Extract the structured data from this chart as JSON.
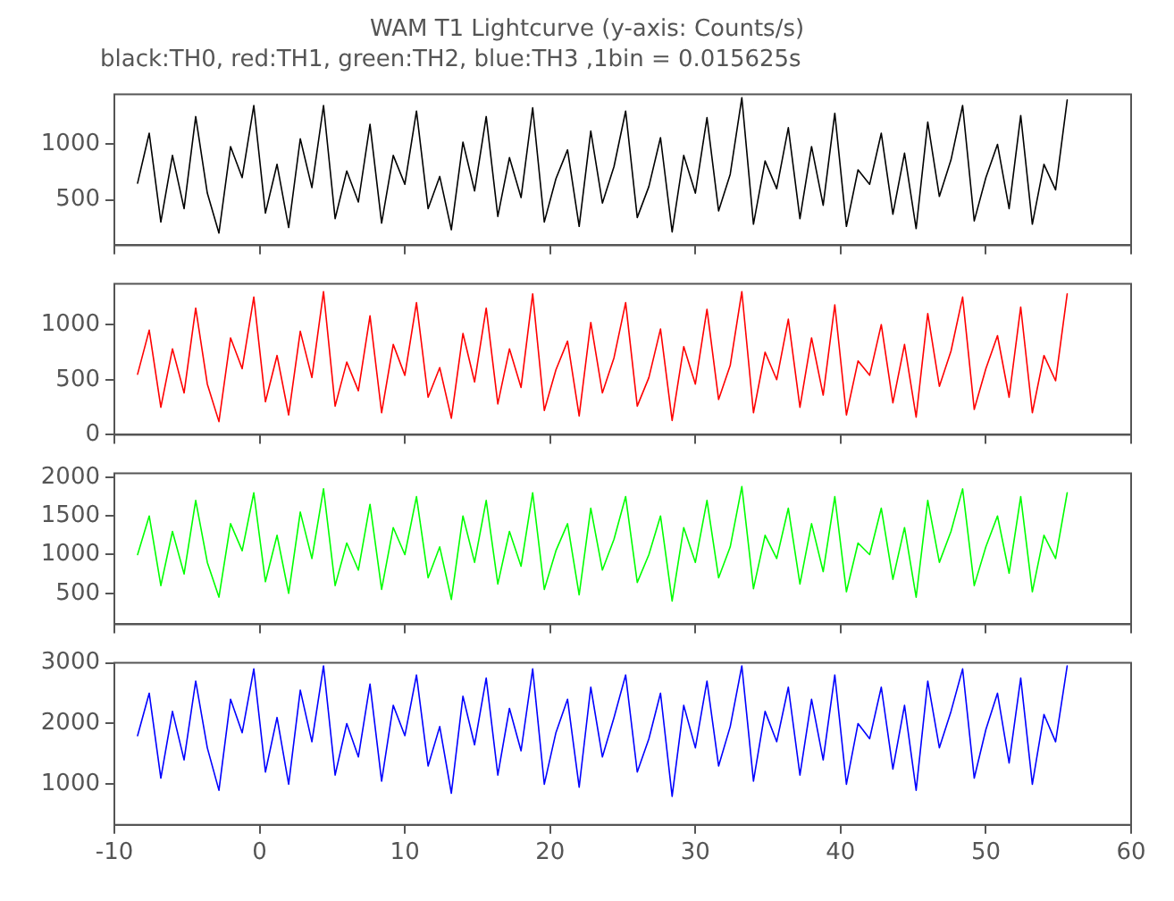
{
  "chart_data": [
    {
      "type": "line",
      "title": "WAM T1 Lightcurve (y-axis: Counts/s)",
      "subtitle": "black:TH0, red:TH1, green:TH2, blue:TH3 ,1bin = 0.015625s",
      "tick_labels": "y",
      "xlim": [
        -10,
        60
      ],
      "xticks": [
        -10,
        0,
        10,
        20,
        30,
        40,
        50,
        60
      ],
      "ylim": [
        90,
        1450
      ],
      "yticks": [
        500,
        1000
      ],
      "x": [
        -8.4,
        -7.6,
        -6.8,
        -6,
        -5.2,
        -4.4,
        -3.6,
        -2.8,
        -2,
        -1.2,
        -0.4,
        0.4,
        1.2,
        2,
        2.8,
        3.6,
        4.4,
        5.2,
        6,
        6.8,
        7.6,
        8.4,
        9.2,
        10,
        10.8,
        11.6,
        12.4,
        13.2,
        14,
        14.8,
        15.6,
        16.4,
        17.2,
        18,
        18.8,
        19.6,
        20.4,
        21.2,
        22,
        22.8,
        23.6,
        24.4,
        25.2,
        26,
        26.8,
        27.6,
        28.4,
        29.2,
        30,
        30.8,
        31.6,
        32.4,
        33.2,
        34,
        34.8,
        35.6,
        36.4,
        37.2,
        38,
        38.8,
        39.6,
        40.4,
        41.2,
        42,
        42.8,
        43.6,
        44.4,
        45.2,
        46,
        46.8,
        47.6,
        48.4,
        49.2,
        50,
        50.8,
        51.6,
        52.4,
        53.2,
        54,
        54.8,
        55.6
      ],
      "series": [
        {
          "color": "#000000",
          "values": [
            650,
            1100,
            300,
            900,
            420,
            1250,
            560,
            200,
            980,
            700,
            1350,
            380,
            820,
            250,
            1050,
            610,
            1350,
            330,
            760,
            480,
            1180,
            290,
            900,
            640,
            1300,
            420,
            710,
            230,
            1020,
            580,
            1250,
            350,
            880,
            520,
            1330,
            300,
            690,
            950,
            260,
            1120,
            470,
            800,
            1300,
            340,
            620,
            1060,
            210,
            900,
            560,
            1240,
            400,
            730,
            1420,
            280,
            850,
            600,
            1150,
            330,
            980,
            450,
            1280,
            260,
            770,
            640,
            1100,
            370,
            920,
            240,
            1200,
            530,
            860,
            1350,
            310,
            700,
            1000,
            420,
            1260,
            280,
            820,
            590,
            1400
          ]
        }
      ]
    },
    {
      "type": "line",
      "tick_labels": "y",
      "xlim": [
        -10,
        60
      ],
      "xticks": [
        -10,
        0,
        10,
        20,
        30,
        40,
        50,
        60
      ],
      "ylim": [
        0,
        1370
      ],
      "yticks": [
        0,
        500,
        1000
      ],
      "x": [
        -8.4,
        -7.6,
        -6.8,
        -6,
        -5.2,
        -4.4,
        -3.6,
        -2.8,
        -2,
        -1.2,
        -0.4,
        0.4,
        1.2,
        2,
        2.8,
        3.6,
        4.4,
        5.2,
        6,
        6.8,
        7.6,
        8.4,
        9.2,
        10,
        10.8,
        11.6,
        12.4,
        13.2,
        14,
        14.8,
        15.6,
        16.4,
        17.2,
        18,
        18.8,
        19.6,
        20.4,
        21.2,
        22,
        22.8,
        23.6,
        24.4,
        25.2,
        26,
        26.8,
        27.6,
        28.4,
        29.2,
        30,
        30.8,
        31.6,
        32.4,
        33.2,
        34,
        34.8,
        35.6,
        36.4,
        37.2,
        38,
        38.8,
        39.6,
        40.4,
        41.2,
        42,
        42.8,
        43.6,
        44.4,
        45.2,
        46,
        46.8,
        47.6,
        48.4,
        49.2,
        50,
        50.8,
        51.6,
        52.4,
        53.2,
        54,
        54.8,
        55.6
      ],
      "series": [
        {
          "color": "#ff0000",
          "values": [
            550,
            950,
            250,
            780,
            380,
            1150,
            460,
            120,
            880,
            600,
            1250,
            300,
            720,
            180,
            940,
            520,
            1300,
            260,
            660,
            400,
            1080,
            200,
            820,
            540,
            1200,
            340,
            610,
            150,
            920,
            480,
            1150,
            280,
            780,
            430,
            1280,
            220,
            590,
            850,
            170,
            1020,
            380,
            700,
            1200,
            260,
            520,
            960,
            130,
            800,
            460,
            1140,
            320,
            630,
            1300,
            200,
            750,
            500,
            1050,
            250,
            880,
            360,
            1180,
            180,
            670,
            540,
            1000,
            290,
            820,
            160,
            1100,
            440,
            760,
            1250,
            230,
            600,
            900,
            340,
            1160,
            200,
            720,
            490,
            1280
          ]
        }
      ]
    },
    {
      "type": "line",
      "tick_labels": "y",
      "xlim": [
        -10,
        60
      ],
      "xticks": [
        -10,
        0,
        10,
        20,
        30,
        40,
        50,
        60
      ],
      "ylim": [
        100,
        2050
      ],
      "yticks": [
        500,
        1000,
        1500,
        2000
      ],
      "x": [
        -8.4,
        -7.6,
        -6.8,
        -6,
        -5.2,
        -4.4,
        -3.6,
        -2.8,
        -2,
        -1.2,
        -0.4,
        0.4,
        1.2,
        2,
        2.8,
        3.6,
        4.4,
        5.2,
        6,
        6.8,
        7.6,
        8.4,
        9.2,
        10,
        10.8,
        11.6,
        12.4,
        13.2,
        14,
        14.8,
        15.6,
        16.4,
        17.2,
        18,
        18.8,
        19.6,
        20.4,
        21.2,
        22,
        22.8,
        23.6,
        24.4,
        25.2,
        26,
        26.8,
        27.6,
        28.4,
        29.2,
        30,
        30.8,
        31.6,
        32.4,
        33.2,
        34,
        34.8,
        35.6,
        36.4,
        37.2,
        38,
        38.8,
        39.6,
        40.4,
        41.2,
        42,
        42.8,
        43.6,
        44.4,
        45.2,
        46,
        46.8,
        47.6,
        48.4,
        49.2,
        50,
        50.8,
        51.6,
        52.4,
        53.2,
        54,
        54.8,
        55.6
      ],
      "series": [
        {
          "color": "#00ff00",
          "values": [
            1000,
            1500,
            600,
            1300,
            750,
            1700,
            900,
            450,
            1400,
            1050,
            1800,
            650,
            1250,
            500,
            1550,
            950,
            1850,
            600,
            1150,
            800,
            1650,
            550,
            1350,
            1000,
            1750,
            700,
            1100,
            420,
            1500,
            900,
            1700,
            620,
            1300,
            850,
            1800,
            550,
            1050,
            1400,
            480,
            1600,
            800,
            1200,
            1750,
            640,
            1000,
            1500,
            400,
            1350,
            900,
            1700,
            700,
            1100,
            1880,
            560,
            1250,
            950,
            1600,
            620,
            1400,
            780,
            1750,
            520,
            1150,
            1000,
            1600,
            680,
            1350,
            450,
            1700,
            900,
            1300,
            1850,
            600,
            1100,
            1500,
            760,
            1750,
            520,
            1250,
            950,
            1800
          ]
        }
      ]
    },
    {
      "type": "line",
      "xlim": [
        -10,
        60
      ],
      "xticks": [
        -10,
        0,
        10,
        20,
        30,
        40,
        50,
        60
      ],
      "ylim": [
        330,
        3000
      ],
      "yticks": [
        1000,
        2000,
        3000
      ],
      "x": [
        -8.4,
        -7.6,
        -6.8,
        -6,
        -5.2,
        -4.4,
        -3.6,
        -2.8,
        -2,
        -1.2,
        -0.4,
        0.4,
        1.2,
        2,
        2.8,
        3.6,
        4.4,
        5.2,
        6,
        6.8,
        7.6,
        8.4,
        9.2,
        10,
        10.8,
        11.6,
        12.4,
        13.2,
        14,
        14.8,
        15.6,
        16.4,
        17.2,
        18,
        18.8,
        19.6,
        20.4,
        21.2,
        22,
        22.8,
        23.6,
        24.4,
        25.2,
        26,
        26.8,
        27.6,
        28.4,
        29.2,
        30,
        30.8,
        31.6,
        32.4,
        33.2,
        34,
        34.8,
        35.6,
        36.4,
        37.2,
        38,
        38.8,
        39.6,
        40.4,
        41.2,
        42,
        42.8,
        43.6,
        44.4,
        45.2,
        46,
        46.8,
        47.6,
        48.4,
        49.2,
        50,
        50.8,
        51.6,
        52.4,
        53.2,
        54,
        54.8,
        55.6
      ],
      "series": [
        {
          "color": "#0000ff",
          "values": [
            1800,
            2500,
            1100,
            2200,
            1400,
            2700,
            1600,
            900,
            2400,
            1850,
            2900,
            1200,
            2100,
            1000,
            2550,
            1700,
            2950,
            1150,
            2000,
            1450,
            2650,
            1050,
            2300,
            1800,
            2800,
            1300,
            1950,
            850,
            2450,
            1650,
            2750,
            1150,
            2250,
            1550,
            2900,
            1000,
            1850,
            2400,
            950,
            2600,
            1450,
            2100,
            2800,
            1200,
            1750,
            2500,
            800,
            2300,
            1600,
            2700,
            1300,
            1950,
            2950,
            1050,
            2200,
            1700,
            2600,
            1150,
            2400,
            1400,
            2800,
            1000,
            2000,
            1750,
            2600,
            1250,
            2300,
            900,
            2700,
            1600,
            2200,
            2900,
            1100,
            1900,
            2500,
            1350,
            2750,
            1000,
            2150,
            1700,
            2950
          ]
        }
      ]
    }
  ]
}
